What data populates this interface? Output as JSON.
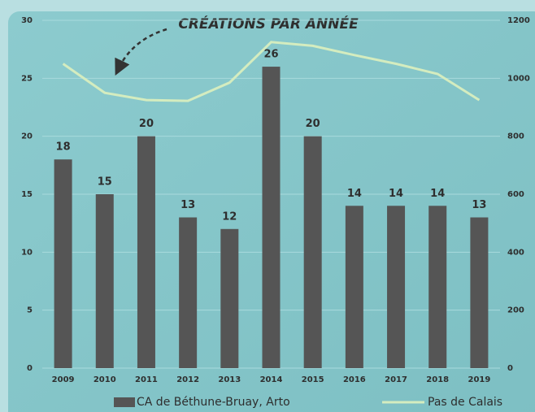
{
  "chart_data": {
    "type": "bar",
    "title": "CRÉATIONS PAR ANNÉE",
    "categories": [
      "2009",
      "2010",
      "2011",
      "2012",
      "2013",
      "2014",
      "2015",
      "2016",
      "2017",
      "2018",
      "2019"
    ],
    "series": [
      {
        "name": "CA de Béthune-Bruay, Arto",
        "color": "#555555",
        "type": "bar",
        "values": [
          18,
          15,
          20,
          13,
          12,
          26,
          20,
          14,
          14,
          14,
          13
        ]
      },
      {
        "name": "Pas de Calais",
        "color": "#d4ecbf",
        "type": "line",
        "axis": "y2",
        "values": [
          1050,
          950,
          925,
          922,
          985,
          1125,
          1112,
          1080,
          1050,
          1015,
          925
        ]
      }
    ],
    "ylim": [
      0,
      30
    ],
    "yticks": [
      0,
      5,
      10,
      15,
      20,
      25,
      30
    ],
    "y2lim": [
      0,
      1200
    ],
    "y2ticks": [
      0,
      200,
      400,
      600,
      800,
      1000,
      1200
    ],
    "grid": true,
    "legend": "bottom"
  }
}
